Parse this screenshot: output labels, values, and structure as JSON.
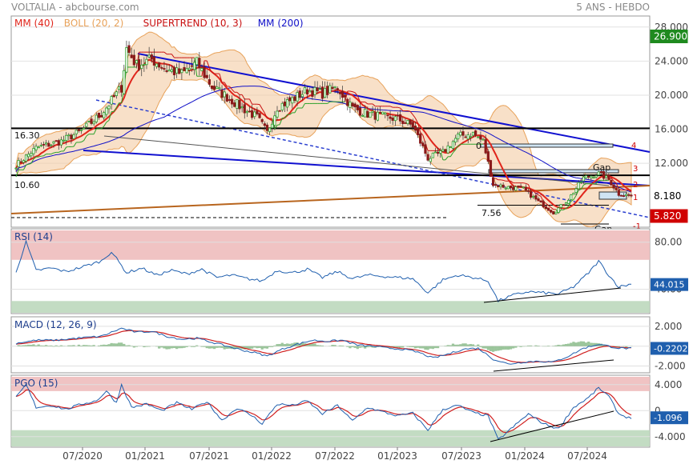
{
  "header": {
    "source": "VOLTALIA - abcbourse.com",
    "period": "5 ANS - HEBDO"
  },
  "colors": {
    "price_tag_green": "#1f8a1f",
    "price_tag_red": "#d00000",
    "indicator_tag_blue": "#1f5fae",
    "mm40": "#e0251b",
    "boll": "#e8a25a",
    "supertrend": "#c81010",
    "mm200": "#1010c8"
  },
  "chart_data": [
    {
      "type": "candlestick",
      "name": "price",
      "legend": [
        {
          "label": "MM (40)",
          "color": "#e0251b"
        },
        {
          "label": "BOLL (20, 2)",
          "color": "#e8a25a"
        },
        {
          "label": "SUPERTREND (10, 3)",
          "color": "#c81010"
        },
        {
          "label": "MM (200)",
          "color": "#1010c8"
        }
      ],
      "y_ticks": [
        "28.000",
        "24.000",
        "20.000",
        "16.000",
        "12.000"
      ],
      "y_tick_values": [
        28,
        24,
        20,
        16,
        12
      ],
      "ylim": [
        4.6,
        29.2
      ],
      "x_ticks": [
        "07/2020",
        "01/2021",
        "07/2021",
        "01/2022",
        "07/2022",
        "01/2023",
        "07/2023",
        "01/2024",
        "07/2024"
      ],
      "right_tags": [
        {
          "value": 26.9,
          "label": "26.900",
          "color": "green"
        },
        {
          "value": 8.18,
          "label": "8.180",
          "color": "white"
        },
        {
          "value": 5.82,
          "label": "5.820",
          "color": "red"
        }
      ],
      "levels": [
        {
          "label": "16.30",
          "value": 16.3
        },
        {
          "label": "10.60",
          "value": 10.6
        },
        {
          "label": "7.56",
          "value": 7.56
        }
      ],
      "annotations": [
        {
          "label": "Gap",
          "value": 12.6
        },
        {
          "label": "Gap",
          "value": 6.1
        },
        {
          "label": "4",
          "value": 15.6
        },
        {
          "label": "3",
          "value": 12.5
        },
        {
          "label": "2",
          "value": 11.0
        },
        {
          "label": "1",
          "value": 9.9
        },
        {
          "label": "0",
          "value": 15.8
        },
        {
          "label": "-1",
          "value": 6.5
        }
      ],
      "close_anchors": [
        [
          0,
          11.8
        ],
        [
          8,
          13.8
        ],
        [
          18,
          14.6
        ],
        [
          26,
          15.8
        ],
        [
          34,
          17.8
        ],
        [
          42,
          20.9
        ],
        [
          44,
          25.5
        ],
        [
          48,
          23.5
        ],
        [
          54,
          24.2
        ],
        [
          60,
          23.0
        ],
        [
          66,
          22.5
        ],
        [
          72,
          23.8
        ],
        [
          78,
          21.0
        ],
        [
          84,
          19.8
        ],
        [
          90,
          18.5
        ],
        [
          96,
          17.4
        ],
        [
          100,
          15.6
        ],
        [
          104,
          18.6
        ],
        [
          110,
          19.5
        ],
        [
          116,
          20.6
        ],
        [
          122,
          20.2
        ],
        [
          128,
          20.9
        ],
        [
          134,
          18.5
        ],
        [
          140,
          17.8
        ],
        [
          146,
          17.5
        ],
        [
          152,
          17.2
        ],
        [
          158,
          16.4
        ],
        [
          164,
          12.6
        ],
        [
          170,
          13.3
        ],
        [
          176,
          15.2
        ],
        [
          182,
          15.5
        ],
        [
          186,
          14.6
        ],
        [
          190,
          9.5
        ],
        [
          196,
          9.2
        ],
        [
          202,
          9.0
        ],
        [
          208,
          7.5
        ],
        [
          214,
          6.2
        ],
        [
          220,
          7.8
        ],
        [
          226,
          10.3
        ],
        [
          232,
          10.8
        ],
        [
          236,
          10.1
        ],
        [
          240,
          8.4
        ],
        [
          245,
          8.2
        ]
      ]
    },
    {
      "type": "line",
      "name": "RSI",
      "legend": [
        {
          "label": "RSI (14)",
          "color": "#1f5fae"
        }
      ],
      "y_ticks": [
        "80.00",
        "40.00"
      ],
      "y_tick_values": [
        80,
        40
      ],
      "ylim": [
        20,
        90
      ],
      "tag": {
        "value": 44.015,
        "label": "44.015"
      },
      "anchors": [
        [
          0,
          55
        ],
        [
          4,
          80
        ],
        [
          8,
          56
        ],
        [
          14,
          58
        ],
        [
          20,
          55
        ],
        [
          28,
          60
        ],
        [
          34,
          64
        ],
        [
          38,
          72
        ],
        [
          40,
          66
        ],
        [
          44,
          54
        ],
        [
          50,
          58
        ],
        [
          56,
          52
        ],
        [
          62,
          56
        ],
        [
          68,
          53
        ],
        [
          74,
          57
        ],
        [
          80,
          50
        ],
        [
          86,
          52
        ],
        [
          92,
          49
        ],
        [
          98,
          47
        ],
        [
          104,
          56
        ],
        [
          110,
          54
        ],
        [
          116,
          57
        ],
        [
          122,
          50
        ],
        [
          128,
          55
        ],
        [
          134,
          49
        ],
        [
          140,
          52
        ],
        [
          146,
          51
        ],
        [
          152,
          50
        ],
        [
          158,
          49
        ],
        [
          164,
          37
        ],
        [
          170,
          48
        ],
        [
          176,
          52
        ],
        [
          182,
          50
        ],
        [
          188,
          47
        ],
        [
          192,
          30
        ],
        [
          198,
          35
        ],
        [
          204,
          38
        ],
        [
          210,
          37
        ],
        [
          216,
          36
        ],
        [
          222,
          42
        ],
        [
          228,
          54
        ],
        [
          232,
          64
        ],
        [
          236,
          52
        ],
        [
          240,
          42
        ],
        [
          244,
          44
        ]
      ]
    },
    {
      "type": "line",
      "name": "MACD",
      "legend": [
        {
          "label": "MACD (12, 26, 9)",
          "color": "#1f5fae"
        }
      ],
      "y_ticks": [
        "2.000",
        "0",
        "-2.000"
      ],
      "y_tick_values": [
        2,
        0,
        -2
      ],
      "ylim": [
        -2.6,
        2.8
      ],
      "tag": {
        "value": -0.2202,
        "label": "-0.2202"
      },
      "anchors": [
        [
          0,
          0.3
        ],
        [
          8,
          0.6
        ],
        [
          16,
          0.6
        ],
        [
          24,
          0.8
        ],
        [
          34,
          1.0
        ],
        [
          42,
          1.8
        ],
        [
          48,
          1.4
        ],
        [
          54,
          1.5
        ],
        [
          60,
          1.0
        ],
        [
          66,
          0.7
        ],
        [
          72,
          0.8
        ],
        [
          78,
          0.4
        ],
        [
          84,
          0.0
        ],
        [
          90,
          -0.4
        ],
        [
          96,
          -0.7
        ],
        [
          100,
          -1.0
        ],
        [
          106,
          -0.3
        ],
        [
          112,
          0.2
        ],
        [
          118,
          0.6
        ],
        [
          124,
          0.5
        ],
        [
          130,
          0.6
        ],
        [
          136,
          0.1
        ],
        [
          142,
          0.0
        ],
        [
          148,
          -0.2
        ],
        [
          154,
          -0.3
        ],
        [
          160,
          -0.6
        ],
        [
          166,
          -1.2
        ],
        [
          172,
          -0.8
        ],
        [
          178,
          -0.3
        ],
        [
          184,
          -0.2
        ],
        [
          190,
          -1.3
        ],
        [
          196,
          -1.8
        ],
        [
          202,
          -1.6
        ],
        [
          208,
          -1.5
        ],
        [
          214,
          -1.6
        ],
        [
          220,
          -1.0
        ],
        [
          226,
          -0.2
        ],
        [
          232,
          0.2
        ],
        [
          236,
          0.0
        ],
        [
          240,
          -0.2
        ],
        [
          244,
          -0.22
        ]
      ]
    },
    {
      "type": "line",
      "name": "PGO",
      "legend": [
        {
          "label": "PGO (15)",
          "color": "#1f5fae"
        }
      ],
      "y_ticks": [
        "4.000",
        "0",
        "-4.000"
      ],
      "y_tick_values": [
        4,
        0,
        -4
      ],
      "ylim": [
        -5.5,
        5.2
      ],
      "tag": {
        "value": -1.096,
        "label": "-1.096"
      },
      "anchors": [
        [
          0,
          2.0
        ],
        [
          4,
          4.0
        ],
        [
          8,
          0.5
        ],
        [
          14,
          0.8
        ],
        [
          20,
          0.2
        ],
        [
          26,
          1.0
        ],
        [
          32,
          1.5
        ],
        [
          36,
          3.0
        ],
        [
          40,
          1.2
        ],
        [
          42,
          4.0
        ],
        [
          46,
          0.5
        ],
        [
          52,
          1.0
        ],
        [
          58,
          0.0
        ],
        [
          64,
          1.2
        ],
        [
          70,
          0.2
        ],
        [
          76,
          1.4
        ],
        [
          82,
          -1.5
        ],
        [
          88,
          0.4
        ],
        [
          94,
          -0.8
        ],
        [
          98,
          -2.0
        ],
        [
          104,
          1.0
        ],
        [
          110,
          0.8
        ],
        [
          116,
          1.5
        ],
        [
          122,
          -0.5
        ],
        [
          128,
          0.8
        ],
        [
          134,
          -1.6
        ],
        [
          140,
          0.5
        ],
        [
          146,
          -0.2
        ],
        [
          152,
          -0.8
        ],
        [
          158,
          -0.4
        ],
        [
          164,
          -3.0
        ],
        [
          170,
          0.2
        ],
        [
          176,
          0.8
        ],
        [
          182,
          -0.3
        ],
        [
          188,
          -0.8
        ],
        [
          192,
          -4.5
        ],
        [
          198,
          -2.5
        ],
        [
          204,
          -0.5
        ],
        [
          210,
          -2.0
        ],
        [
          216,
          -2.8
        ],
        [
          222,
          0.5
        ],
        [
          228,
          2.0
        ],
        [
          232,
          3.5
        ],
        [
          236,
          2.2
        ],
        [
          240,
          -0.5
        ],
        [
          244,
          -1.1
        ]
      ]
    }
  ]
}
